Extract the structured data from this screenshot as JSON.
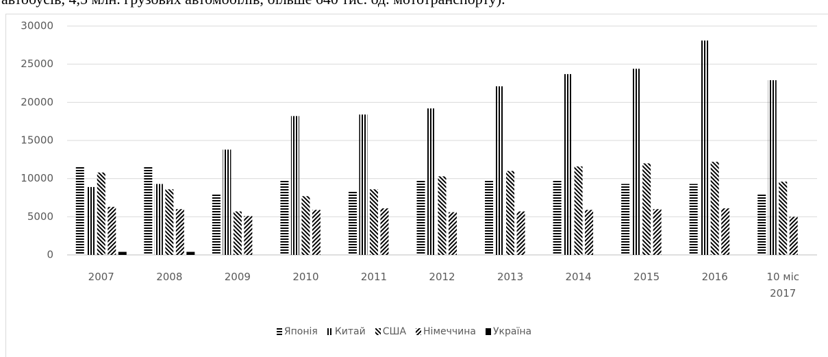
{
  "caption": "автобусів, 4,5 млн. грузових автомобілів, більше 640 тис. од. мототранспорту).",
  "chart_data": {
    "type": "bar",
    "categories": [
      "2007",
      "2008",
      "2009",
      "2010",
      "2011",
      "2012",
      "2013",
      "2014",
      "2015",
      "2016",
      "10 міс 2017"
    ],
    "series": [
      {
        "name": "Японія",
        "color": "#000000",
        "pattern": "horizontal",
        "values": [
          11600,
          11600,
          7900,
          9700,
          8300,
          9700,
          9700,
          9700,
          9300,
          9300,
          7900
        ]
      },
      {
        "name": "Китай",
        "color": "#000000",
        "pattern": "vertical",
        "values": [
          8900,
          9300,
          13800,
          18200,
          18400,
          19200,
          22100,
          23700,
          24400,
          28100,
          22900
        ]
      },
      {
        "name": "США",
        "color": "#000000",
        "pattern": "backslash",
        "values": [
          10800,
          8600,
          5700,
          7700,
          8600,
          10300,
          11000,
          11600,
          12000,
          12200,
          9600
        ]
      },
      {
        "name": "Німеччина",
        "color": "#000000",
        "pattern": "slash",
        "values": [
          6300,
          6000,
          5100,
          5900,
          6100,
          5600,
          5700,
          5900,
          6000,
          6100,
          5000
        ]
      },
      {
        "name": "Україна",
        "color": "#000000",
        "pattern": "solid",
        "values": [
          400,
          400,
          null,
          null,
          null,
          null,
          null,
          null,
          null,
          null,
          null
        ]
      }
    ],
    "ylim": [
      0,
      30000
    ],
    "yticks": [
      0,
      5000,
      10000,
      15000,
      20000,
      25000,
      30000
    ],
    "grid": true,
    "legend": "bottom"
  }
}
